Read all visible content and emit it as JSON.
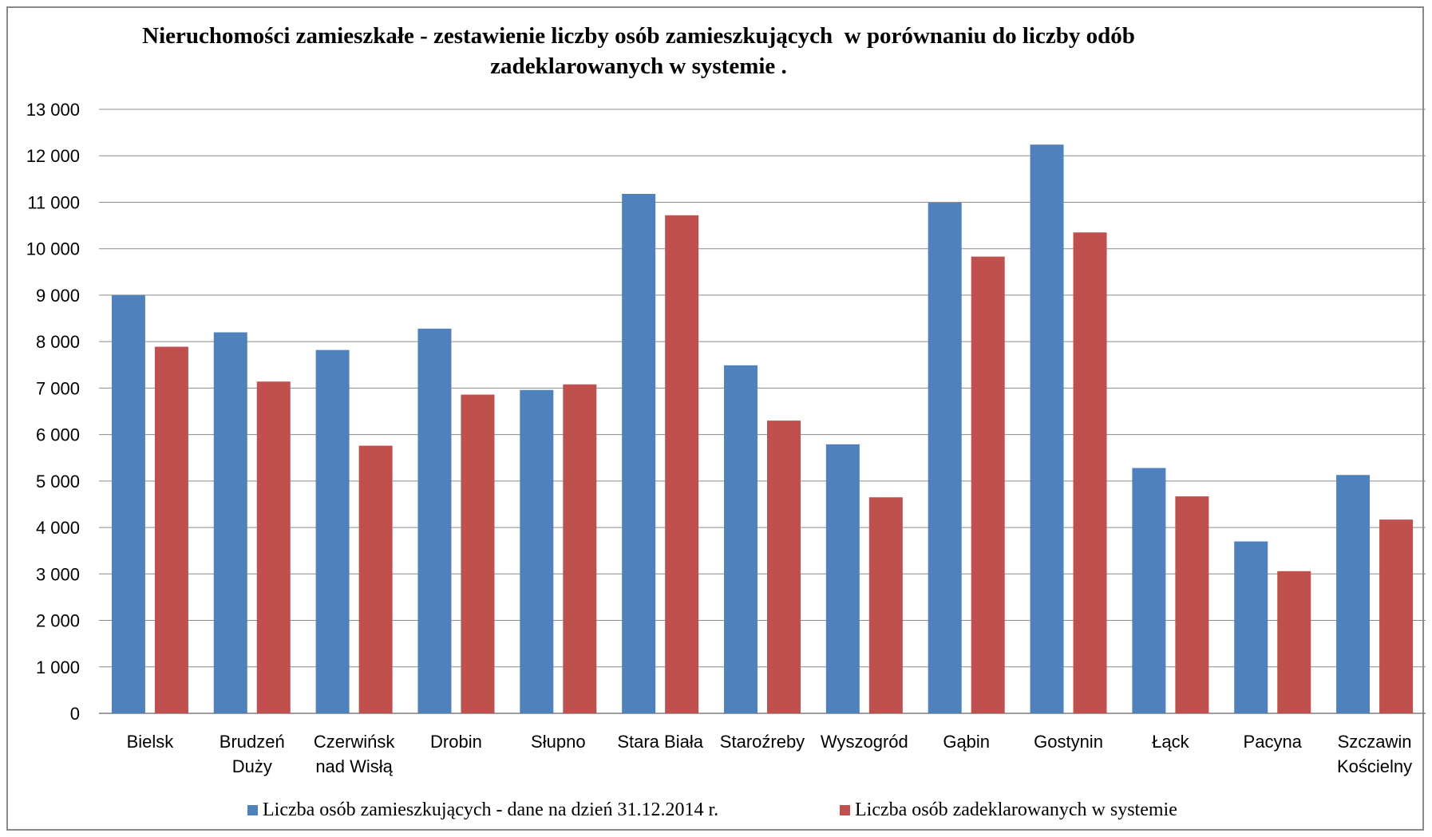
{
  "chart_data": {
    "type": "bar",
    "title_lines": [
      "Nieruchomości zamieszkałe - zestawienie liczby osób zamieszkujących  w porównaniu do liczby odób",
      "zadeklarowanych w systemie ."
    ],
    "categories": [
      [
        "Bielsk"
      ],
      [
        "Brudzeń",
        "Duży"
      ],
      [
        "Czerwińsk",
        "nad Wisłą"
      ],
      [
        "Drobin"
      ],
      [
        "Słupno"
      ],
      [
        "Stara Biała"
      ],
      [
        "Staroźreby"
      ],
      [
        "Wyszogród"
      ],
      [
        "Gąbin"
      ],
      [
        "Gostynin"
      ],
      [
        "Łąck"
      ],
      [
        "Pacyna"
      ],
      [
        "Szczawin",
        "Kościelny"
      ]
    ],
    "series": [
      {
        "name": "Liczba osób zamieszkujących - dane na dzień 31.12.2014 r.",
        "color": "#4F81BD",
        "values": [
          9000,
          8200,
          7820,
          8280,
          6960,
          11180,
          7490,
          5790,
          10990,
          12240,
          5280,
          3700,
          5130
        ]
      },
      {
        "name": "Liczba osób zadeklarowanych w systemie",
        "color": "#C0504D",
        "values": [
          7890,
          7140,
          5760,
          6860,
          7080,
          10720,
          6300,
          4650,
          9830,
          10350,
          4670,
          3060,
          4170
        ]
      }
    ],
    "yticks": [
      "0",
      "1 000",
      "2 000",
      "3 000",
      "4 000",
      "5 000",
      "6 000",
      "7 000",
      "8 000",
      "9 000",
      "10 000",
      "11 000",
      "12 000",
      "13 000"
    ],
    "ylim": [
      0,
      13000
    ],
    "grid": true,
    "legend_position": "bottom"
  }
}
